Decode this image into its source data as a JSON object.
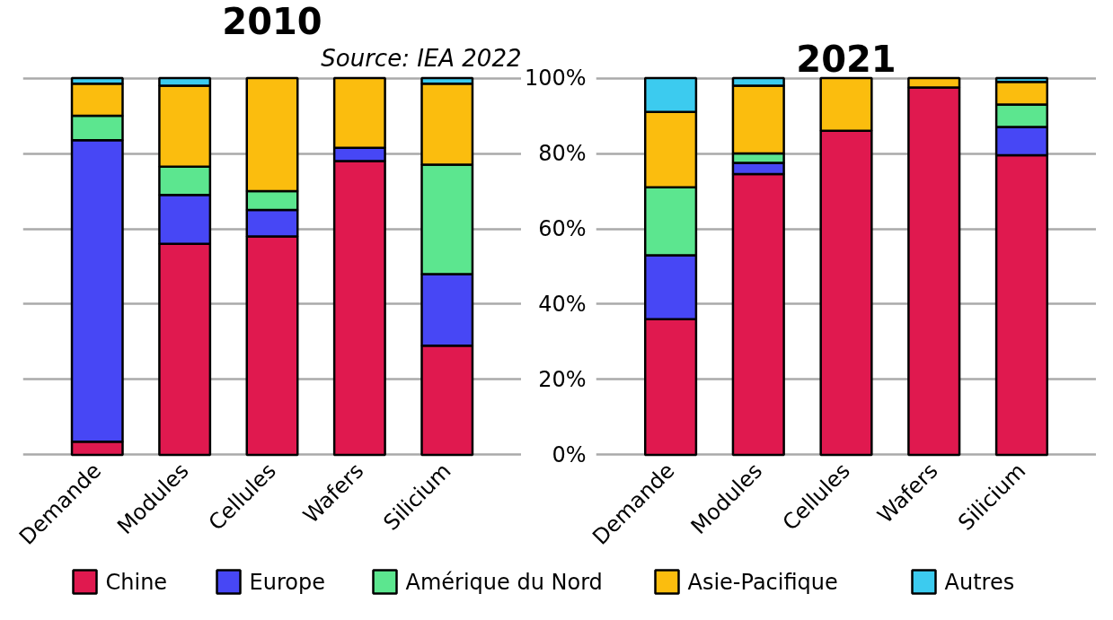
{
  "chart_data": [
    {
      "type": "bar",
      "stacked": true,
      "title": "2010",
      "annotations": [
        "Source: IEA 2022"
      ],
      "categories": [
        "Demande",
        "Modules",
        "Cellules",
        "Wafers",
        "Silicium"
      ],
      "ylim": [
        0,
        100
      ],
      "yticks": [
        0,
        20,
        40,
        60,
        80,
        100
      ],
      "grid": "y",
      "tick_labels": "x",
      "legend": "bottom",
      "series": [
        {
          "name": "Chine",
          "color": "#e0194f",
          "values": [
            3.5,
            56,
            58,
            78,
            29
          ]
        },
        {
          "name": "Europe",
          "color": "#4747f5",
          "values": [
            80,
            13,
            7,
            3.5,
            19
          ]
        },
        {
          "name": "Amérique du Nord",
          "color": "#5ce68f",
          "values": [
            6.5,
            7.5,
            5,
            0,
            29
          ]
        },
        {
          "name": "Asie-Pacifique",
          "color": "#fbbd0e",
          "values": [
            8.5,
            21.5,
            30,
            18.5,
            21.5
          ]
        },
        {
          "name": "Autres",
          "color": "#3ccbef",
          "values": [
            1.5,
            2,
            0,
            0,
            1.5
          ]
        }
      ]
    },
    {
      "type": "bar",
      "stacked": true,
      "title": "2021",
      "categories": [
        "Demande",
        "Modules",
        "Cellules",
        "Wafers",
        "Silicium"
      ],
      "ylim": [
        0,
        100
      ],
      "yticks": [
        {
          "value": 0,
          "label": "0%"
        },
        {
          "value": 20,
          "label": "20%"
        },
        {
          "value": 40,
          "label": "40%"
        },
        {
          "value": 60,
          "label": "60%"
        },
        {
          "value": 80,
          "label": "80%"
        },
        {
          "value": 100,
          "label": "100%"
        }
      ],
      "grid": "y",
      "series": [
        {
          "color": "#e0194f",
          "values": [
            36,
            74.5,
            86,
            97.5,
            79.5
          ]
        },
        {
          "color": "#4747f5",
          "values": [
            17,
            3,
            0,
            0,
            7.5
          ]
        },
        {
          "color": "#5ce68f",
          "values": [
            18,
            2.5,
            0,
            0,
            6
          ]
        },
        {
          "color": "#fbbd0e",
          "values": [
            20,
            18,
            14,
            2.5,
            6
          ]
        },
        {
          "color": "#3ccbef",
          "values": [
            9,
            2,
            0,
            0,
            1
          ]
        }
      ]
    }
  ]
}
